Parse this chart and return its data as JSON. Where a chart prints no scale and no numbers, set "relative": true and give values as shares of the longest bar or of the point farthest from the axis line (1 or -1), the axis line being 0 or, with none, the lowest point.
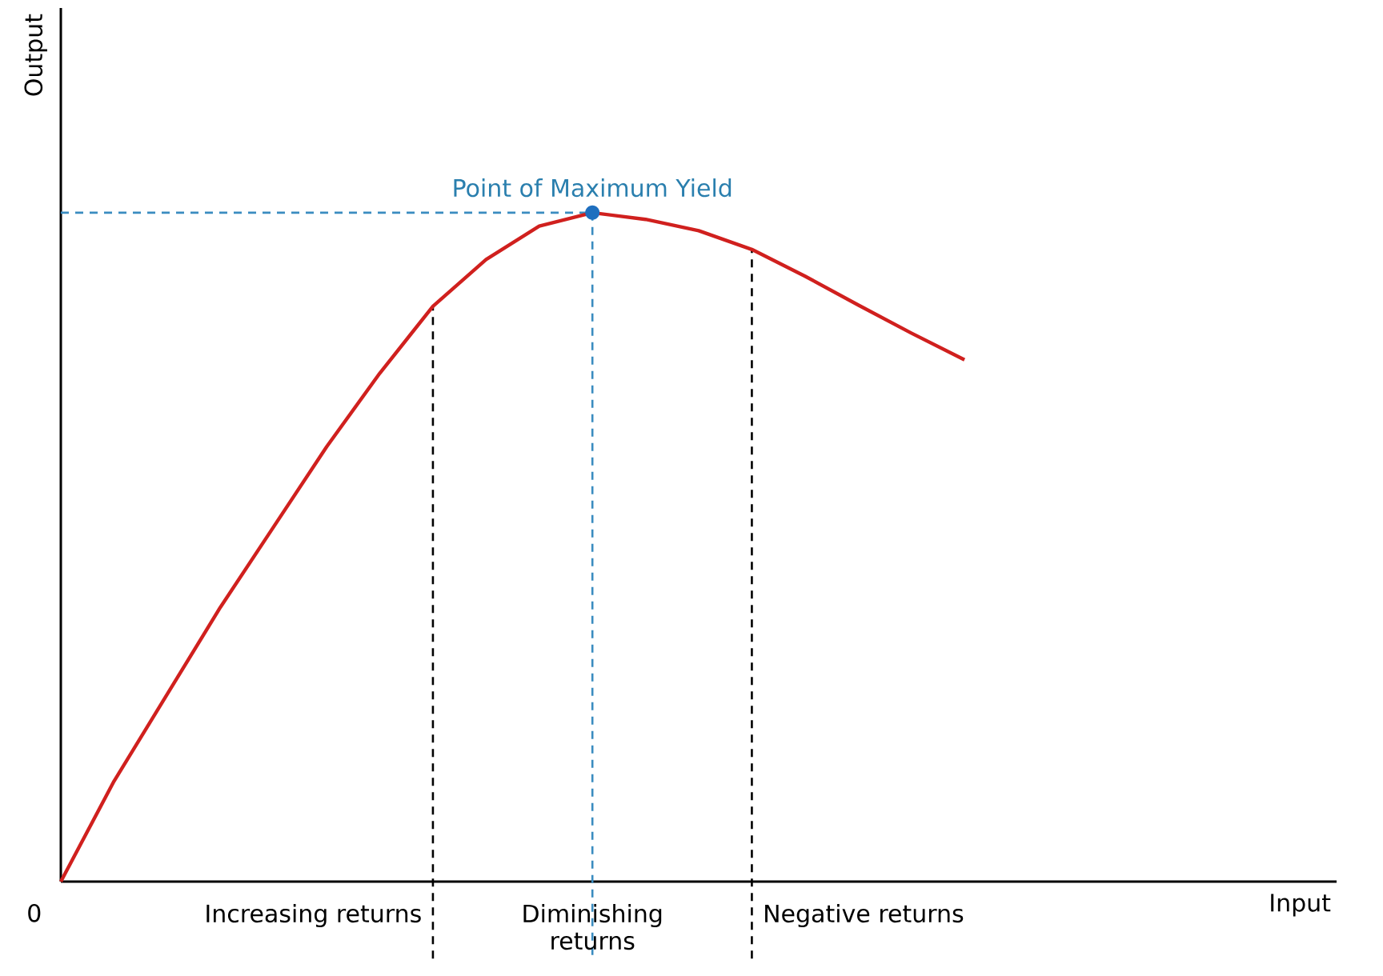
{
  "chart_data": {
    "type": "line",
    "relative": true,
    "ylabel": "Output",
    "categories": [
      null,
      null,
      null,
      null,
      null,
      null,
      null,
      null,
      null,
      null,
      null,
      null,
      null,
      null,
      null,
      null,
      null,
      null
    ],
    "series": [
      {
        "color": "#d0201e",
        "values": [
          0,
          0.15,
          0.28,
          0.41,
          0.53,
          0.65,
          0.76,
          0.86,
          0.93,
          0.98,
          1,
          0.99,
          0.973,
          0.945,
          0.905,
          0.862,
          0.82,
          0.78
        ]
      }
    ],
    "ref_lines": [
      {
        "axis": "y",
        "value": 1,
        "color": "#3a8cc0",
        "line_style": "dashed"
      }
    ],
    "annotations": [
      {
        "text": "Point of Maximum Yield",
        "y": 1
      },
      "0",
      "Increasing returns",
      "Diminishing returns",
      "Negative returns",
      "Input"
    ]
  }
}
